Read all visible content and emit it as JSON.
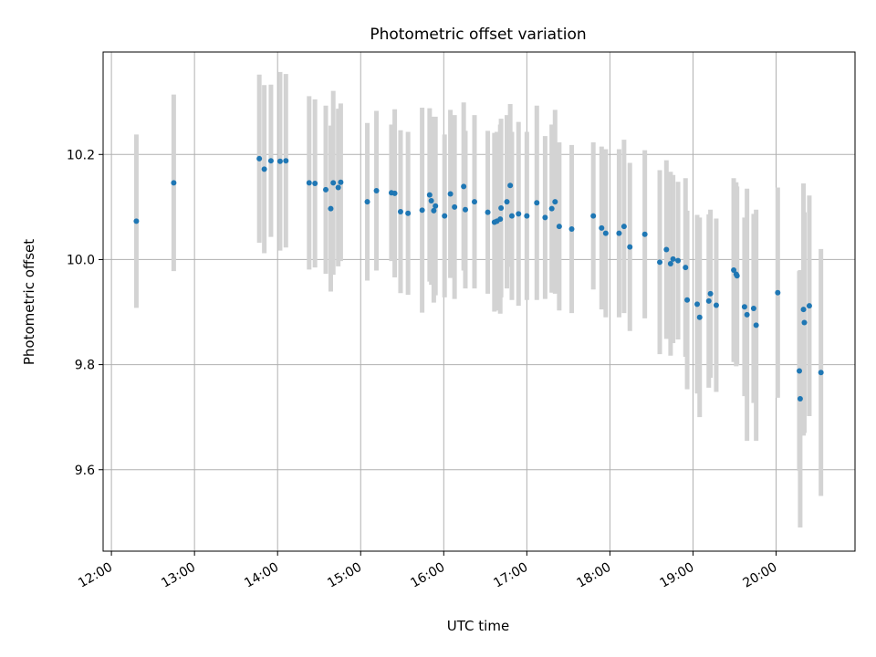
{
  "chart_data": {
    "type": "scatter",
    "title": "Photometric offset variation",
    "xlabel": "UTC time",
    "ylabel": "Photometric offset",
    "x_unit": "hours UTC",
    "xlim": [
      11.9,
      20.95
    ],
    "ylim": [
      9.445,
      10.395
    ],
    "x_ticks": [
      12,
      13,
      14,
      15,
      16,
      17,
      18,
      19,
      20
    ],
    "x_tick_labels": [
      "12:00",
      "13:00",
      "14:00",
      "15:00",
      "16:00",
      "17:00",
      "18:00",
      "19:00",
      "20:00"
    ],
    "y_ticks": [
      9.6,
      9.8,
      10.0,
      10.2
    ],
    "y_tick_labels": [
      "9.6",
      "9.8",
      "10.0",
      "10.2"
    ],
    "grid": true,
    "colors": {
      "point": "#1f77b4",
      "errorbar": "#d3d3d3",
      "grid": "#b0b0b0"
    },
    "x": [
      12.3,
      12.75,
      13.78,
      13.84,
      13.92,
      14.03,
      14.1,
      14.38,
      14.45,
      14.58,
      14.64,
      14.67,
      14.73,
      14.76,
      15.08,
      15.19,
      15.37,
      15.41,
      15.48,
      15.57,
      15.74,
      15.83,
      15.85,
      15.88,
      15.9,
      16.01,
      16.08,
      16.13,
      16.24,
      16.26,
      16.37,
      16.53,
      16.61,
      16.64,
      16.68,
      16.69,
      16.76,
      16.8,
      16.82,
      16.9,
      17.0,
      17.12,
      17.22,
      17.3,
      17.34,
      17.39,
      17.54,
      17.8,
      17.9,
      17.95,
      18.11,
      18.17,
      18.24,
      18.42,
      18.6,
      18.68,
      18.73,
      18.76,
      18.82,
      18.91,
      18.93,
      19.05,
      19.08,
      19.19,
      19.21,
      19.28,
      19.49,
      19.52,
      19.53,
      19.62,
      19.65,
      19.73,
      19.76,
      20.02,
      20.28,
      20.29,
      20.33,
      20.34,
      20.4,
      20.54
    ],
    "y": [
      10.073,
      10.146,
      10.192,
      10.172,
      10.188,
      10.187,
      10.188,
      10.146,
      10.145,
      10.133,
      10.097,
      10.146,
      10.137,
      10.147,
      10.11,
      10.131,
      10.127,
      10.126,
      10.091,
      10.088,
      10.094,
      10.123,
      10.112,
      10.093,
      10.102,
      10.083,
      10.125,
      10.1,
      10.139,
      10.095,
      10.11,
      10.09,
      10.071,
      10.073,
      10.077,
      10.098,
      10.11,
      10.141,
      10.083,
      10.087,
      10.083,
      10.108,
      10.08,
      10.097,
      10.11,
      10.063,
      10.058,
      10.083,
      10.06,
      10.05,
      10.05,
      10.063,
      10.024,
      10.048,
      9.995,
      10.019,
      9.992,
      10.001,
      9.998,
      9.985,
      9.923,
      9.915,
      9.89,
      9.921,
      9.935,
      9.913,
      9.98,
      9.972,
      9.969,
      9.91,
      9.895,
      9.907,
      9.875,
      9.937,
      9.788,
      9.735,
      9.905,
      9.88,
      9.912,
      9.785
    ],
    "yerr": [
      0.165,
      0.168,
      0.16,
      0.16,
      0.145,
      0.17,
      0.165,
      0.165,
      0.16,
      0.16,
      0.158,
      0.175,
      0.15,
      0.15,
      0.15,
      0.152,
      0.13,
      0.16,
      0.155,
      0.155,
      0.195,
      0.165,
      0.16,
      0.175,
      0.17,
      0.155,
      0.16,
      0.175,
      0.16,
      0.15,
      0.165,
      0.155,
      0.17,
      0.17,
      0.18,
      0.17,
      0.165,
      0.155,
      0.16,
      0.175,
      0.16,
      0.185,
      0.155,
      0.16,
      0.175,
      0.16,
      0.16,
      0.14,
      0.155,
      0.16,
      0.16,
      0.165,
      0.16,
      0.16,
      0.175,
      0.17,
      0.175,
      0.16,
      0.15,
      0.17,
      0.17,
      0.17,
      0.19,
      0.165,
      0.16,
      0.165,
      0.175,
      0.175,
      0.17,
      0.17,
      0.24,
      0.18,
      0.22,
      0.2,
      0.19,
      0.245,
      0.24,
      0.21,
      0.21,
      0.235
    ]
  }
}
